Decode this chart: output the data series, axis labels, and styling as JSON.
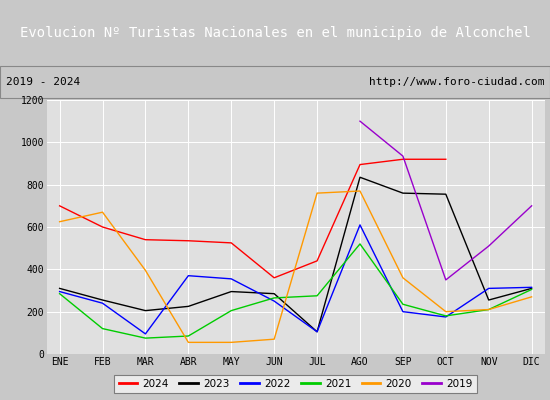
{
  "title": "Evolucion Nº Turistas Nacionales en el municipio de Alconchel",
  "subtitle_left": "2019 - 2024",
  "subtitle_right": "http://www.foro-ciudad.com",
  "months": [
    "ENE",
    "FEB",
    "MAR",
    "ABR",
    "MAY",
    "JUN",
    "JUL",
    "AGO",
    "SEP",
    "OCT",
    "NOV",
    "DIC"
  ],
  "series": {
    "2024": {
      "color": "#ff0000",
      "values": [
        700,
        600,
        540,
        535,
        525,
        360,
        440,
        895,
        920,
        920,
        null,
        null
      ]
    },
    "2023": {
      "color": "#000000",
      "values": [
        310,
        255,
        205,
        225,
        295,
        285,
        105,
        835,
        760,
        755,
        255,
        310
      ]
    },
    "2022": {
      "color": "#0000ff",
      "values": [
        295,
        240,
        95,
        370,
        355,
        250,
        105,
        610,
        200,
        175,
        310,
        315
      ]
    },
    "2021": {
      "color": "#00cc00",
      "values": [
        285,
        120,
        75,
        85,
        205,
        265,
        275,
        520,
        235,
        180,
        210,
        305
      ]
    },
    "2020": {
      "color": "#ff9900",
      "values": [
        625,
        670,
        395,
        55,
        55,
        70,
        760,
        770,
        360,
        200,
        210,
        270
      ]
    },
    "2019": {
      "color": "#9900cc",
      "values": [
        null,
        null,
        null,
        null,
        null,
        null,
        null,
        1100,
        935,
        350,
        510,
        700
      ]
    }
  },
  "ylim": [
    0,
    1200
  ],
  "yticks": [
    0,
    200,
    400,
    600,
    800,
    1000,
    1200
  ],
  "fig_bg_color": "#c8c8c8",
  "plot_bg_color": "#e0e0e0",
  "title_bg_color": "#5588cc",
  "title_color": "#ffffff",
  "subtitle_bg_color": "#f0f0f0",
  "title_fontsize": 10,
  "subtitle_fontsize": 8,
  "legend_order": [
    "2024",
    "2023",
    "2022",
    "2021",
    "2020",
    "2019"
  ]
}
